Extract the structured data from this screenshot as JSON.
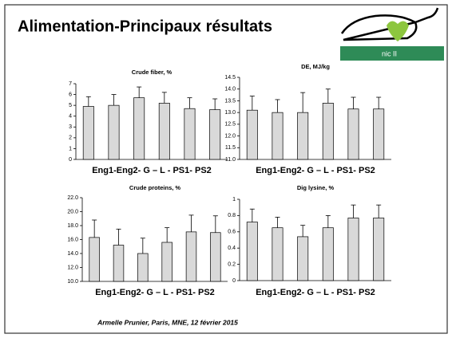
{
  "title": "Alimentation-Principaux résultats",
  "logo_text": "nic II",
  "footer": "Armelle Prunier, Paris, MNE, 12 février 2015",
  "chart_data": [
    {
      "type": "bar",
      "title": "Crude fiber, %",
      "x_label": "Eng1-Eng2- G – L - PS1- PS2",
      "categories": [
        null,
        null,
        null,
        null,
        null,
        null
      ],
      "values": [
        4.9,
        5.0,
        5.7,
        5.2,
        4.7,
        4.6
      ],
      "errors": [
        0.9,
        1.0,
        1.0,
        1.0,
        1.0,
        1.0
      ],
      "color": "#d9d9d9",
      "ylim": [
        0,
        7
      ],
      "yticks": [
        0,
        1,
        2,
        3,
        4,
        5,
        6,
        7
      ]
    },
    {
      "type": "bar",
      "title": "DE, MJ/kg",
      "x_label": "Eng1-Eng2- G – L - PS1- PS2",
      "categories": [
        null,
        null,
        null,
        null,
        null,
        null
      ],
      "values": [
        13.1,
        13.0,
        13.0,
        13.4,
        13.15,
        13.15
      ],
      "errors": [
        0.6,
        0.55,
        0.85,
        0.6,
        0.5,
        0.5
      ],
      "color": "#d9d9d9",
      "ylim": [
        11,
        14.5
      ],
      "yticks": [
        {
          "value": 11,
          "label": "11.0"
        },
        {
          "value": 11.5,
          "label": "11.5"
        },
        {
          "value": 12,
          "label": "12.0"
        },
        {
          "value": 12.5,
          "label": "12.5"
        },
        {
          "value": 13,
          "label": "13.0"
        },
        {
          "value": 13.5,
          "label": "13.5"
        },
        {
          "value": 14,
          "label": "14.0"
        },
        {
          "value": 14.5,
          "label": "14.5"
        }
      ]
    },
    {
      "type": "bar",
      "title": "Crude proteins, %",
      "x_label": "Eng1-Eng2- G – L - PS1- PS2",
      "categories": [
        null,
        null,
        null,
        null,
        null,
        null
      ],
      "values": [
        16.3,
        15.2,
        14.0,
        15.6,
        17.1,
        17.0
      ],
      "errors": [
        2.5,
        2.3,
        2.2,
        2.1,
        2.4,
        2.4
      ],
      "color": "#d9d9d9",
      "ylim": [
        10,
        22
      ],
      "yticks": [
        {
          "value": 10,
          "label": "10.0"
        },
        {
          "value": 12,
          "label": "12.0"
        },
        {
          "value": 14,
          "label": "14.0"
        },
        {
          "value": 16,
          "label": "16.0"
        },
        {
          "value": 18,
          "label": "18.0"
        },
        {
          "value": 20,
          "label": "20.0"
        },
        {
          "value": 22,
          "label": "22.0"
        }
      ]
    },
    {
      "type": "bar",
      "title": "Dig lysine, %",
      "x_label": "Eng1-Eng2- G – L - PS1- PS2",
      "categories": [
        null,
        null,
        null,
        null,
        null,
        null
      ],
      "values": [
        0.72,
        0.65,
        0.54,
        0.65,
        0.77,
        0.77
      ],
      "errors": [
        0.16,
        0.13,
        0.14,
        0.15,
        0.16,
        0.16
      ],
      "color": "#d9d9d9",
      "ylim": [
        0,
        1
      ],
      "yticks": [
        0,
        0.2,
        0.4,
        0.6,
        0.8,
        1
      ]
    }
  ]
}
